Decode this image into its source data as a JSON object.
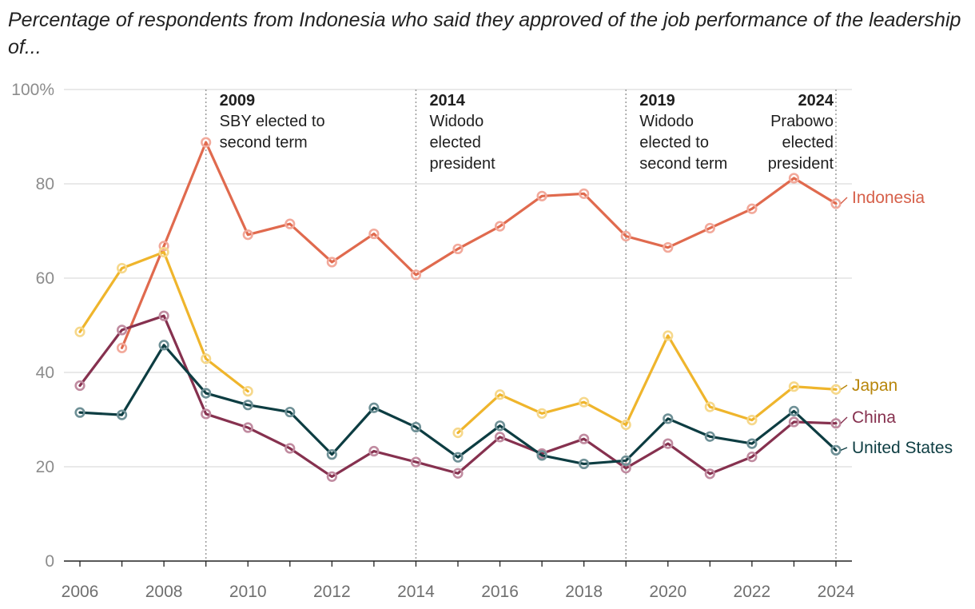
{
  "chart_data": {
    "type": "line",
    "title": "Percentage of respondents from Indonesia who said they approved of the job performance of the leadership of...",
    "x": [
      2006,
      2007,
      2008,
      2009,
      2010,
      2011,
      2012,
      2013,
      2014,
      2015,
      2016,
      2017,
      2018,
      2019,
      2020,
      2021,
      2022,
      2023,
      2024
    ],
    "xlim": [
      2006,
      2024
    ],
    "x_ticks": [
      2006,
      2008,
      2010,
      2012,
      2014,
      2016,
      2018,
      2020,
      2022,
      2024
    ],
    "ylim": [
      0,
      100
    ],
    "y_ticks": [
      0,
      20,
      40,
      60,
      80,
      100
    ],
    "y_tick_labels": [
      "0",
      "20",
      "40",
      "60",
      "80",
      "100%"
    ],
    "grid": true,
    "series": [
      {
        "name": "Indonesia",
        "color": "#e06a4e",
        "point_color": "#f2a99b",
        "label_color": "#d6604a",
        "values": [
          null,
          45.2,
          66.8,
          88.8,
          69.2,
          71.5,
          63.4,
          69.4,
          60.7,
          66.2,
          71.0,
          77.4,
          77.9,
          68.9,
          66.5,
          70.6,
          74.7,
          81.2,
          75.8
        ]
      },
      {
        "name": "Japan",
        "color": "#efb52c",
        "point_color": "#f6d88b",
        "label_color": "#b8860b",
        "values": [
          48.6,
          62.1,
          65.5,
          42.9,
          36.0,
          null,
          null,
          null,
          null,
          27.2,
          35.3,
          31.3,
          33.7,
          28.9,
          47.8,
          32.7,
          29.9,
          37.0,
          36.4
        ]
      },
      {
        "name": "China",
        "color": "#86314f",
        "point_color": "#c08ba0",
        "label_color": "#86314f",
        "values": [
          37.2,
          49.0,
          52.0,
          31.2,
          28.3,
          23.9,
          17.9,
          23.3,
          21.0,
          18.6,
          26.3,
          22.8,
          25.9,
          19.7,
          24.9,
          18.5,
          22.1,
          29.5,
          29.2
        ]
      },
      {
        "name": "United States",
        "color": "#0d3d42",
        "point_color": "#6e9096",
        "label_color": "#0d3d42",
        "values": [
          31.5,
          31.0,
          45.8,
          35.6,
          33.1,
          31.6,
          22.6,
          32.5,
          28.4,
          22.0,
          28.7,
          22.4,
          20.6,
          21.3,
          30.2,
          26.4,
          24.9,
          31.8,
          23.5
        ]
      }
    ],
    "annotations": [
      {
        "x": 2009,
        "year": "2009",
        "lines": [
          "SBY elected to",
          "second term"
        ],
        "align": "left"
      },
      {
        "x": 2014,
        "year": "2014",
        "lines": [
          "Widodo",
          "elected",
          "president"
        ],
        "align": "left"
      },
      {
        "x": 2019,
        "year": "2019",
        "lines": [
          "Widodo",
          "elected to",
          "second term"
        ],
        "align": "left"
      },
      {
        "x": 2024,
        "year": "2024",
        "lines": [
          "Prabowo",
          "elected",
          "president"
        ],
        "align": "right"
      }
    ]
  }
}
